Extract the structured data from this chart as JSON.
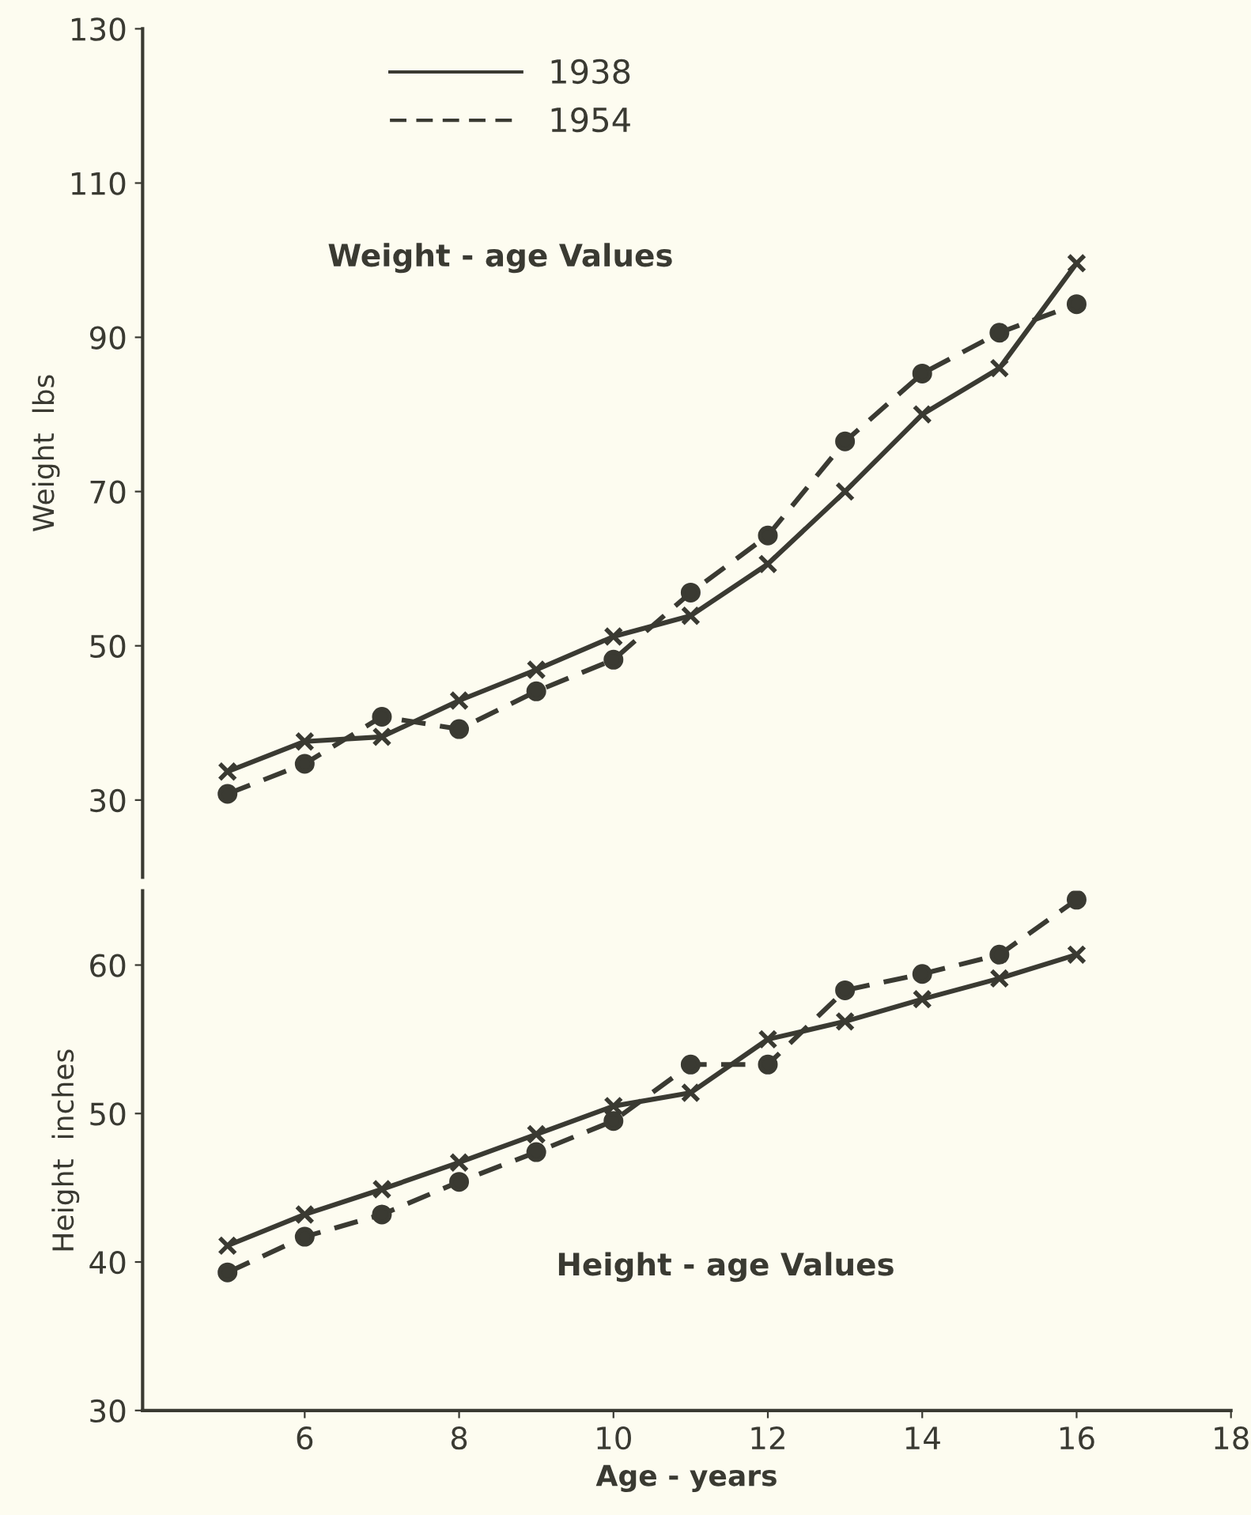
{
  "chart_data": [
    {
      "type": "line",
      "ylabel": "Weight  lbs",
      "annotations": [
        "Weight - age Values"
      ],
      "x": [
        5,
        6,
        7,
        8,
        9,
        10,
        11,
        12,
        13,
        14,
        15,
        16
      ],
      "xlim": [
        3.9,
        18
      ],
      "ylim": [
        20,
        130
      ],
      "yticks": [
        30,
        50,
        70,
        90,
        110,
        130
      ],
      "tick_labels": "y",
      "legend": "top left",
      "grid": false,
      "series": [
        {
          "name": "1938",
          "color": "#3a3a32",
          "marker": "cross",
          "line_style": "solid",
          "values": [
            33.7,
            37.6,
            38.2,
            42.9,
            46.9,
            51.2,
            53.9,
            60.6,
            70,
            80,
            86,
            99.6
          ]
        },
        {
          "name": "1954",
          "color": "#3a3a32",
          "marker": "circle",
          "line_style": "dashed",
          "values": [
            30.8,
            34.7,
            40.8,
            39.2,
            44.1,
            48.2,
            56.9,
            64.3,
            76.5,
            85.3,
            90.6,
            94.3
          ]
        }
      ]
    },
    {
      "type": "line",
      "ylabel": "Height  inches",
      "xlabel": "Age - years",
      "annotations": [
        "Height - age Values"
      ],
      "x": [
        5,
        6,
        7,
        8,
        9,
        10,
        11,
        12,
        13,
        14,
        15,
        16
      ],
      "xlim": [
        3.9,
        18
      ],
      "xticks": [
        6,
        8,
        10,
        12,
        14,
        16,
        18
      ],
      "ylim": [
        30,
        65
      ],
      "yticks": [
        30,
        40,
        50,
        60
      ],
      "grid": false,
      "series": [
        {
          "color": "#3a3a32",
          "marker": "cross",
          "line_style": "solid",
          "values": [
            41.1,
            43.2,
            44.9,
            46.7,
            48.6,
            50.5,
            51.4,
            55.0,
            56.2,
            57.7,
            59.1,
            60.7
          ]
        },
        {
          "color": "#3a3a32",
          "marker": "circle",
          "line_style": "dashed",
          "values": [
            39.3,
            41.7,
            43.2,
            45.4,
            47.4,
            49.5,
            53.3,
            53.3,
            58.3,
            59.4,
            60.7,
            64.4
          ]
        }
      ]
    }
  ]
}
